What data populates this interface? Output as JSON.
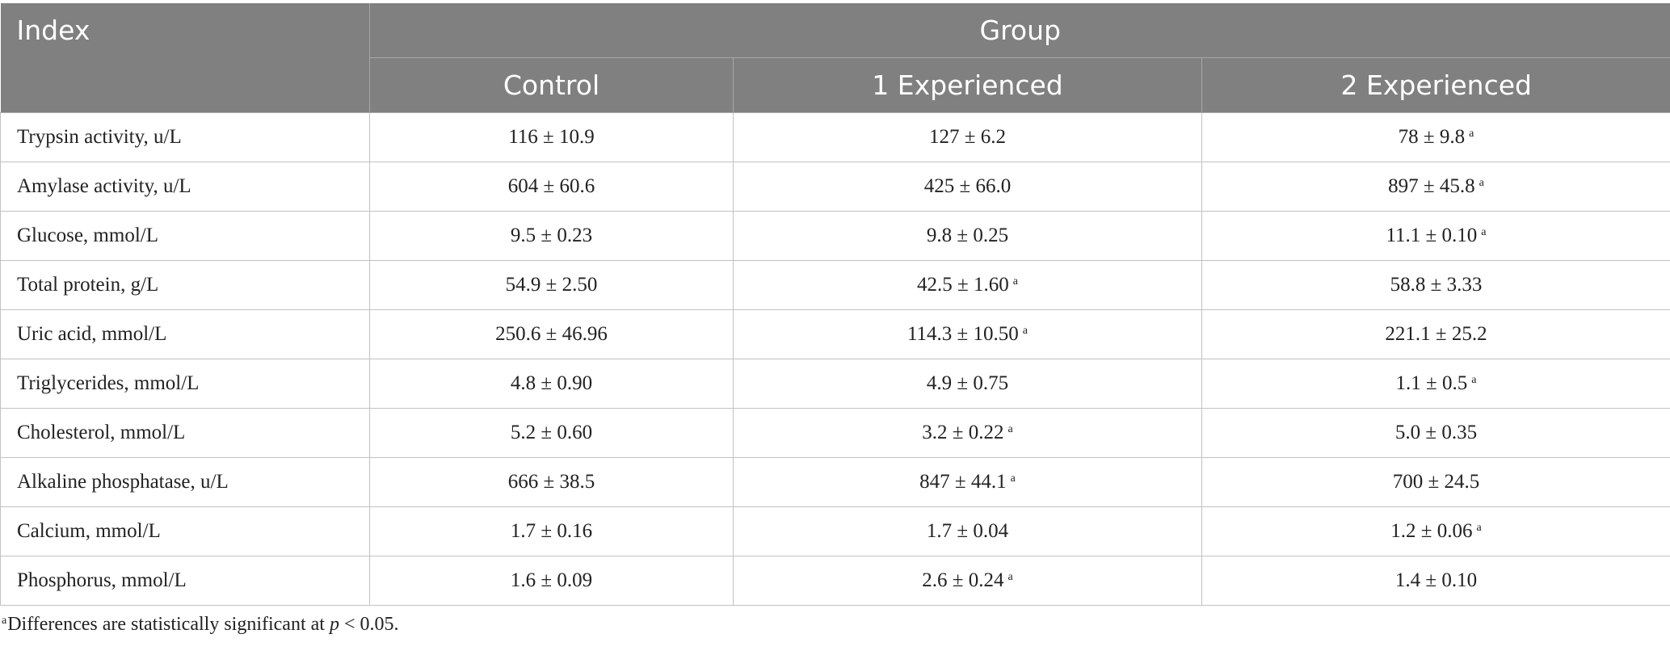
{
  "table": {
    "header": {
      "index": "Index",
      "group": "Group",
      "columns": [
        "Control",
        "1 Experienced",
        "2 Experienced"
      ]
    },
    "rows": [
      {
        "label": "Trypsin activity, u/L",
        "cells": [
          {
            "text": "116 ± 10.9"
          },
          {
            "text": "127 ± 6.2"
          },
          {
            "text": "78 ± 9.8",
            "sup": "a"
          }
        ]
      },
      {
        "label": "Amylase activity, u/L",
        "cells": [
          {
            "text": "604 ± 60.6"
          },
          {
            "text": "425 ± 66.0"
          },
          {
            "text": "897 ± 45.8",
            "sup": "a"
          }
        ]
      },
      {
        "label": "Glucose, mmol/L",
        "cells": [
          {
            "text": "9.5 ± 0.23"
          },
          {
            "text": "9.8 ± 0.25"
          },
          {
            "text": "11.1 ± 0.10",
            "sup": "a"
          }
        ]
      },
      {
        "label": "Total protein, g/L",
        "cells": [
          {
            "text": "54.9 ± 2.50"
          },
          {
            "text": "42.5 ± 1.60",
            "sup": "a"
          },
          {
            "text": "58.8 ± 3.33"
          }
        ]
      },
      {
        "label": "Uric acid, mmol/L",
        "cells": [
          {
            "text": "250.6 ± 46.96"
          },
          {
            "text": "114.3 ± 10.50",
            "sup": "a"
          },
          {
            "text": "221.1 ± 25.2"
          }
        ]
      },
      {
        "label": "Triglycerides, mmol/L",
        "cells": [
          {
            "text": "4.8 ± 0.90"
          },
          {
            "text": "4.9 ± 0.75"
          },
          {
            "text": "1.1 ± 0.5",
            "sup": "a"
          }
        ]
      },
      {
        "label": "Cholesterol, mmol/L",
        "cells": [
          {
            "text": "5.2 ± 0.60"
          },
          {
            "text": "3.2 ± 0.22",
            "sup": "a"
          },
          {
            "text": "5.0 ± 0.35"
          }
        ]
      },
      {
        "label": "Alkaline phosphatase, u/L",
        "cells": [
          {
            "text": "666 ± 38.5"
          },
          {
            "text": "847 ± 44.1",
            "sup": "a"
          },
          {
            "text": "700 ± 24.5"
          }
        ]
      },
      {
        "label": "Calcium, mmol/L",
        "cells": [
          {
            "text": "1.7 ± 0.16"
          },
          {
            "text": "1.7 ± 0.04"
          },
          {
            "text": "1.2 ± 0.06",
            "sup": "a"
          }
        ]
      },
      {
        "label": "Phosphorus, mmol/L",
        "cells": [
          {
            "text": "1.6 ± 0.09"
          },
          {
            "text": "2.6 ± 0.24",
            "sup": "a"
          },
          {
            "text": "1.4 ± 0.10"
          }
        ]
      }
    ]
  },
  "footnote": {
    "marker": "a",
    "text": "Differences are statistically significant at ",
    "italic": "p",
    "rest": " < 0.05."
  }
}
